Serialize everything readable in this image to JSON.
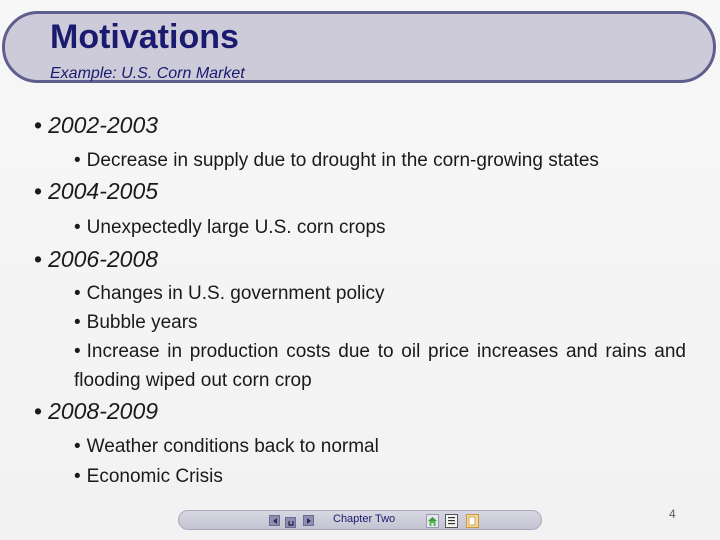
{
  "title": "Motivations",
  "subtitle": "Example: U.S. Corn Market",
  "bullet_char": "•",
  "sections": [
    {
      "heading": "2002-2003",
      "items": [
        "Decrease in supply due to drought in the corn-growing states"
      ]
    },
    {
      "heading": "2004-2005",
      "items": [
        "Unexpectedly large U.S. corn crops"
      ]
    },
    {
      "heading": "2006-2008",
      "items": [
        "Changes in U.S. government policy",
        "Bubble years",
        "Increase in production costs due to oil price increases and rains and flooding wiped out corn crop"
      ]
    },
    {
      "heading": "2008-2009",
      "items": [
        "Weather conditions back to normal",
        "Economic Crisis"
      ]
    }
  ],
  "footer": {
    "chapter": "Chapter Two",
    "page_number": "4",
    "nav_icons": [
      "previous-icon",
      "up-icon",
      "next-icon",
      "home-icon",
      "index-icon",
      "document-icon"
    ]
  },
  "colors": {
    "title": "#1a1a6e",
    "banner_fill": "#cdcbd9",
    "banner_border": "#5f5f8f"
  }
}
